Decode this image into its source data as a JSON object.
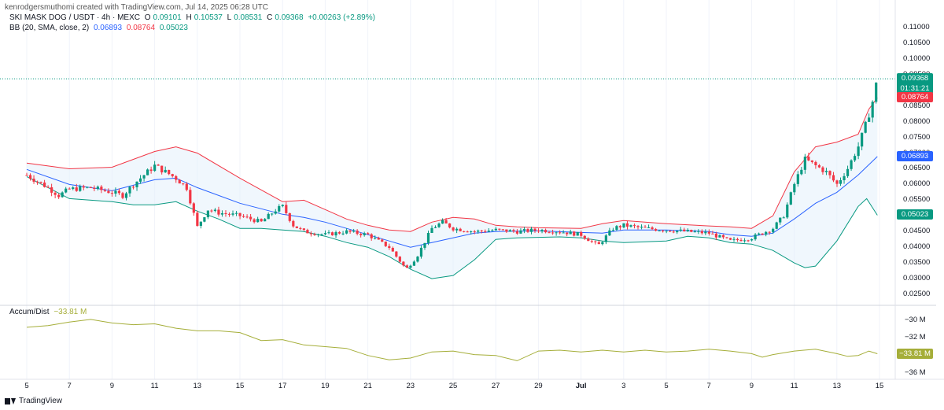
{
  "header": {
    "credit": "kenrodgersmuthomi created with TradingView.com, Jul 14, 2025 06:28 UTC"
  },
  "legend": {
    "symbol": "SKI MASK DOG / USDT · 4h · MEXC",
    "ohlc": {
      "o_label": "O",
      "o": "0.09101",
      "h_label": "H",
      "h": "0.10537",
      "l_label": "L",
      "l": "0.08531",
      "c_label": "C",
      "c": "0.09368",
      "change": "+0.00263 (+2.89%)"
    },
    "bb": {
      "label": "BB (20, SMA, close, 2)",
      "basis": "0.06893",
      "upper": "0.08764",
      "lower": "0.05023"
    },
    "ad": {
      "label": "Accum/Dist",
      "value": "−33.81 M"
    }
  },
  "price_axis": {
    "ticks": [
      "0.11000",
      "0.10500",
      "0.10000",
      "0.09500",
      "0.09000",
      "0.08500",
      "0.08000",
      "0.07500",
      "0.07000",
      "0.06500",
      "0.06000",
      "0.05500",
      "0.05000",
      "0.04500",
      "0.04000",
      "0.03500",
      "0.03000",
      "0.02500"
    ],
    "tags": [
      {
        "name": "last-price",
        "text": "0.09368",
        "text2": "01:31:21",
        "value": 0.09368,
        "color": "#089981"
      },
      {
        "name": "bb-upper",
        "text": "0.08764",
        "value": 0.08764,
        "color": "#f23645"
      },
      {
        "name": "bb-basis",
        "text": "0.06893",
        "value": 0.06893,
        "color": "#2962ff"
      },
      {
        "name": "bb-lower",
        "text": "0.05023",
        "value": 0.05023,
        "color": "#089981"
      }
    ]
  },
  "ad_axis": {
    "ticks": [
      "−30 M",
      "−32 M",
      "−34 M",
      "−36 M"
    ],
    "tag": {
      "text": "−33.81 M",
      "value": -33.81,
      "color": "#a5ae39"
    }
  },
  "x_axis": {
    "ticks": [
      "5",
      "7",
      "9",
      "11",
      "13",
      "15",
      "17",
      "19",
      "21",
      "23",
      "25",
      "27",
      "29",
      "Jul",
      "3",
      "5",
      "7",
      "9",
      "11",
      "13",
      "15"
    ]
  },
  "footer": {
    "brand": "TradingView"
  },
  "colors": {
    "up": "#089981",
    "down": "#f23645",
    "basis": "#2962ff",
    "upper": "#f23645",
    "lower": "#089981",
    "ad": "#a5ae39",
    "fill": "#e3f0fb"
  },
  "chart_data": [
    {
      "type": "candlestick",
      "title": "SKI MASK DOG / USDT · 4h · MEXC",
      "ylim": [
        0.025,
        0.11
      ],
      "x_ticks": [
        "5",
        "7",
        "9",
        "11",
        "13",
        "15",
        "17",
        "19",
        "21",
        "23",
        "25",
        "27",
        "29",
        "Jul",
        "3",
        "5",
        "7",
        "9",
        "11",
        "13",
        "15"
      ],
      "close_path": [
        [
          5,
          0.063
        ],
        [
          6,
          0.059
        ],
        [
          6.5,
          0.0565
        ],
        [
          7,
          0.0585
        ],
        [
          8,
          0.059
        ],
        [
          9,
          0.0575
        ],
        [
          9.5,
          0.0565
        ],
        [
          10,
          0.06
        ],
        [
          11,
          0.066
        ],
        [
          11.5,
          0.064
        ],
        [
          12,
          0.062
        ],
        [
          12.5,
          0.059
        ],
        [
          13,
          0.0465
        ],
        [
          13.5,
          0.052
        ],
        [
          14,
          0.051
        ],
        [
          15,
          0.05
        ],
        [
          16,
          0.048
        ],
        [
          16.7,
          0.052
        ],
        [
          17,
          0.053
        ],
        [
          17.5,
          0.047
        ],
        [
          18,
          0.045
        ],
        [
          19,
          0.044
        ],
        [
          20,
          0.045
        ],
        [
          21,
          0.044
        ],
        [
          22,
          0.04
        ],
        [
          22.8,
          0.033
        ],
        [
          23.3,
          0.037
        ],
        [
          24,
          0.046
        ],
        [
          24.5,
          0.048
        ],
        [
          25,
          0.046
        ],
        [
          26,
          0.045
        ],
        [
          27,
          0.0455
        ],
        [
          28,
          0.045
        ],
        [
          29,
          0.0455
        ],
        [
          30,
          0.045
        ],
        [
          31,
          0.044
        ],
        [
          31.8,
          0.0405
        ],
        [
          32.5,
          0.046
        ],
        [
          33,
          0.047
        ],
        [
          34,
          0.046
        ],
        [
          35,
          0.0455
        ],
        [
          36,
          0.045
        ],
        [
          37,
          0.0445
        ],
        [
          38,
          0.042
        ],
        [
          39,
          0.043
        ],
        [
          40,
          0.046
        ],
        [
          40.5,
          0.05
        ],
        [
          41,
          0.06
        ],
        [
          41.5,
          0.068
        ],
        [
          42,
          0.066
        ],
        [
          42.5,
          0.064
        ],
        [
          43,
          0.06
        ],
        [
          43.5,
          0.065
        ],
        [
          44,
          0.072
        ],
        [
          44.4,
          0.08
        ],
        [
          44.7,
          0.087
        ],
        [
          44.9,
          0.0937
        ]
      ],
      "bb_upper_path": [
        [
          5,
          0.0668
        ],
        [
          7,
          0.065
        ],
        [
          9,
          0.0655
        ],
        [
          11,
          0.0705
        ],
        [
          12,
          0.072
        ],
        [
          13,
          0.07
        ],
        [
          15,
          0.062
        ],
        [
          17,
          0.0545
        ],
        [
          18,
          0.055
        ],
        [
          19,
          0.052
        ],
        [
          20,
          0.049
        ],
        [
          21,
          0.047
        ],
        [
          22,
          0.0455
        ],
        [
          23,
          0.045
        ],
        [
          24,
          0.048
        ],
        [
          25,
          0.0495
        ],
        [
          26,
          0.049
        ],
        [
          27,
          0.047
        ],
        [
          28,
          0.0465
        ],
        [
          29,
          0.0462
        ],
        [
          31,
          0.046
        ],
        [
          32,
          0.0475
        ],
        [
          33,
          0.0485
        ],
        [
          35,
          0.0475
        ],
        [
          37,
          0.0468
        ],
        [
          38,
          0.0465
        ],
        [
          39,
          0.046
        ],
        [
          40,
          0.05
        ],
        [
          41,
          0.064
        ],
        [
          42,
          0.072
        ],
        [
          43,
          0.0735
        ],
        [
          44,
          0.076
        ],
        [
          44.5,
          0.084
        ],
        [
          44.9,
          0.0876
        ]
      ],
      "bb_basis_path": [
        [
          5,
          0.0648
        ],
        [
          7,
          0.06
        ],
        [
          9,
          0.058
        ],
        [
          11,
          0.0615
        ],
        [
          12,
          0.062
        ],
        [
          13,
          0.059
        ],
        [
          15,
          0.054
        ],
        [
          17,
          0.0505
        ],
        [
          18,
          0.0495
        ],
        [
          19,
          0.048
        ],
        [
          20,
          0.046
        ],
        [
          21,
          0.044
        ],
        [
          22,
          0.042
        ],
        [
          23,
          0.04
        ],
        [
          24,
          0.0415
        ],
        [
          25,
          0.043
        ],
        [
          26,
          0.0445
        ],
        [
          27,
          0.045
        ],
        [
          29,
          0.0452
        ],
        [
          31,
          0.0447
        ],
        [
          32,
          0.0445
        ],
        [
          33,
          0.0455
        ],
        [
          35,
          0.0455
        ],
        [
          37,
          0.045
        ],
        [
          38,
          0.044
        ],
        [
          39,
          0.0435
        ],
        [
          40,
          0.0445
        ],
        [
          41,
          0.049
        ],
        [
          42,
          0.054
        ],
        [
          43,
          0.0575
        ],
        [
          44,
          0.063
        ],
        [
          44.9,
          0.0689
        ]
      ],
      "bb_lower_path": [
        [
          5,
          0.0625
        ],
        [
          7,
          0.0555
        ],
        [
          9,
          0.0545
        ],
        [
          10,
          0.0535
        ],
        [
          11,
          0.0535
        ],
        [
          12,
          0.0545
        ],
        [
          13,
          0.0515
        ],
        [
          14,
          0.049
        ],
        [
          15,
          0.046
        ],
        [
          16,
          0.046
        ],
        [
          17,
          0.0455
        ],
        [
          18,
          0.045
        ],
        [
          19,
          0.0435
        ],
        [
          20,
          0.0415
        ],
        [
          21,
          0.04
        ],
        [
          22,
          0.037
        ],
        [
          23,
          0.033
        ],
        [
          24,
          0.03
        ],
        [
          25,
          0.031
        ],
        [
          26,
          0.036
        ],
        [
          27,
          0.0425
        ],
        [
          28,
          0.043
        ],
        [
          30,
          0.0433
        ],
        [
          31,
          0.043
        ],
        [
          32,
          0.042
        ],
        [
          33,
          0.0415
        ],
        [
          35,
          0.042
        ],
        [
          36,
          0.0435
        ],
        [
          37,
          0.043
        ],
        [
          38,
          0.0415
        ],
        [
          39,
          0.041
        ],
        [
          40,
          0.039
        ],
        [
          41,
          0.035
        ],
        [
          41.5,
          0.0335
        ],
        [
          42,
          0.034
        ],
        [
          43,
          0.042
        ],
        [
          44,
          0.053
        ],
        [
          44.4,
          0.0555
        ],
        [
          44.9,
          0.0502
        ]
      ]
    },
    {
      "type": "line",
      "title": "Accum/Dist",
      "ylim": [
        -36.5,
        -29.5
      ],
      "series": [
        {
          "name": "Accum/Dist",
          "values_path": [
            [
              5,
              -30.8
            ],
            [
              6,
              -30.6
            ],
            [
              7,
              -30.2
            ],
            [
              8,
              -29.9
            ],
            [
              9,
              -30.3
            ],
            [
              10,
              -30.5
            ],
            [
              11,
              -30.4
            ],
            [
              12,
              -30.9
            ],
            [
              13,
              -31.2
            ],
            [
              14,
              -31.2
            ],
            [
              15,
              -31.4
            ],
            [
              16,
              -32.3
            ],
            [
              17,
              -32.2
            ],
            [
              18,
              -32.8
            ],
            [
              19,
              -33.0
            ],
            [
              20,
              -33.2
            ],
            [
              21,
              -34.0
            ],
            [
              22,
              -34.5
            ],
            [
              23,
              -34.3
            ],
            [
              24,
              -33.6
            ],
            [
              25,
              -33.5
            ],
            [
              26,
              -33.9
            ],
            [
              27,
              -34.0
            ],
            [
              28,
              -34.6
            ],
            [
              29,
              -33.5
            ],
            [
              30,
              -33.4
            ],
            [
              31,
              -33.6
            ],
            [
              32,
              -33.4
            ],
            [
              33,
              -33.6
            ],
            [
              34,
              -33.4
            ],
            [
              35,
              -33.6
            ],
            [
              36,
              -33.5
            ],
            [
              37,
              -33.3
            ],
            [
              38,
              -33.5
            ],
            [
              39,
              -33.8
            ],
            [
              39.5,
              -34.2
            ],
            [
              40,
              -33.9
            ],
            [
              41,
              -33.5
            ],
            [
              42,
              -33.3
            ],
            [
              43,
              -33.8
            ],
            [
              43.5,
              -34.1
            ],
            [
              44,
              -34.0
            ],
            [
              44.5,
              -33.5
            ],
            [
              44.9,
              -33.81
            ]
          ]
        }
      ]
    }
  ]
}
